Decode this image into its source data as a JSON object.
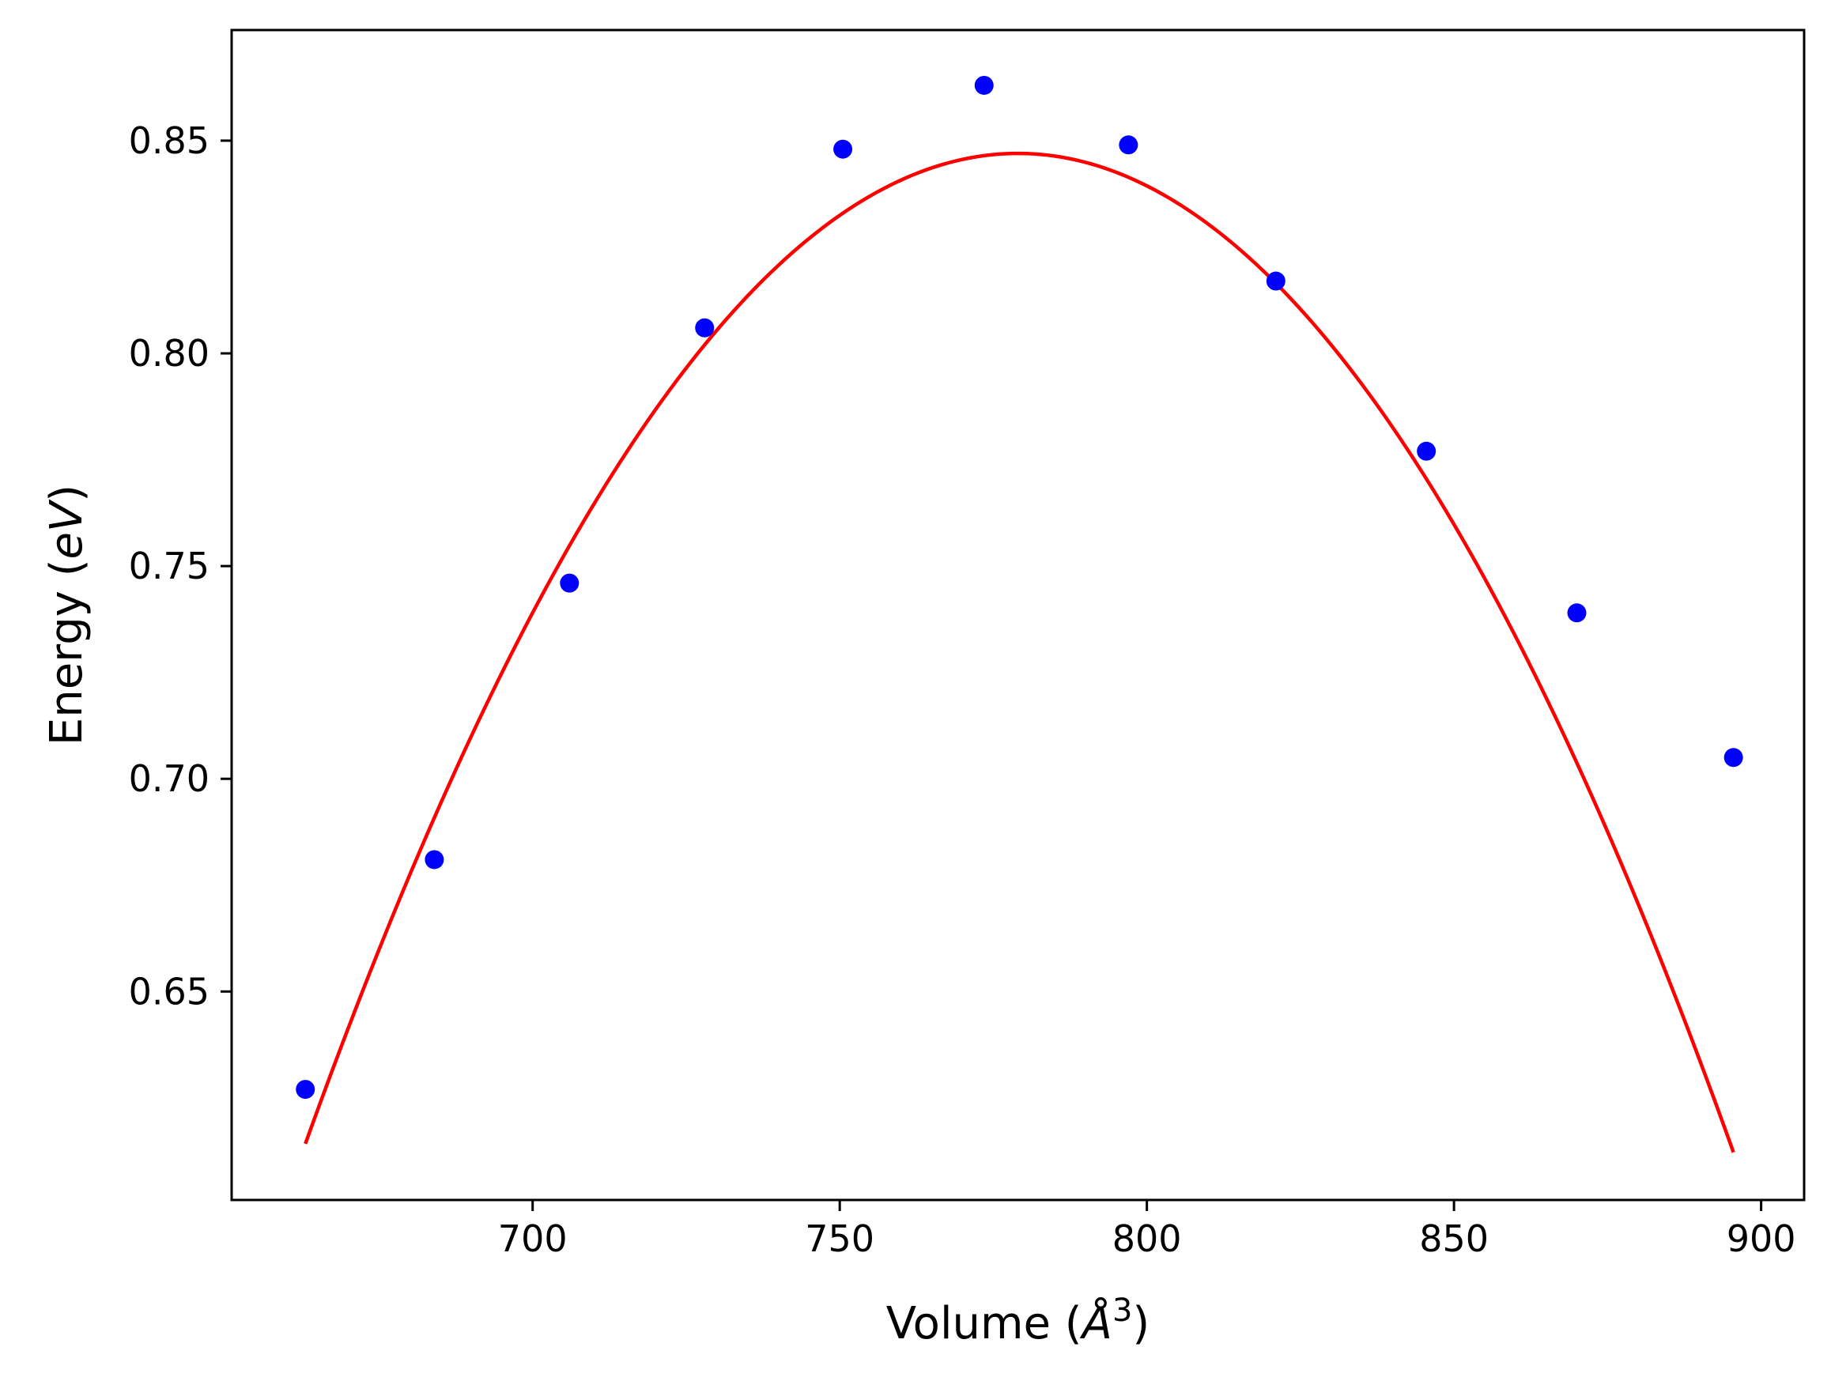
{
  "chart_data": {
    "type": "scatter",
    "xlabel": "Volume (",
    "xlabel_sym": "Å",
    "xlabel_sup": "3",
    "xlabel_end": ")",
    "ylabel": "Energy (",
    "ylabel_sym": "eV",
    "ylabel_end": ")",
    "xlim": [
      651,
      907
    ],
    "ylim": [
      0.601,
      0.876
    ],
    "xticks": [
      700,
      750,
      800,
      850,
      900
    ],
    "xtick_labels": [
      "700",
      "750",
      "800",
      "850",
      "900"
    ],
    "yticks": [
      0.65,
      0.7,
      0.75,
      0.8,
      0.85
    ],
    "ytick_labels": [
      "0.65",
      "0.70",
      "0.75",
      "0.80",
      "0.85"
    ],
    "grid": false,
    "series": [
      {
        "kind": "scatter",
        "color": "#0000ff",
        "x": [
          663,
          684,
          706,
          728,
          750.5,
          773.5,
          797,
          821,
          845.5,
          870,
          895.5
        ],
        "y": [
          0.627,
          0.681,
          0.746,
          0.806,
          0.848,
          0.863,
          0.849,
          0.817,
          0.777,
          0.739,
          0.705
        ]
      },
      {
        "kind": "line",
        "color": "#ff0000",
        "fit": "quadratic",
        "vertex_x": 779,
        "vertex_y": 0.847,
        "curvature": -1.73e-05,
        "x_range": [
          663,
          895.5
        ]
      }
    ]
  }
}
